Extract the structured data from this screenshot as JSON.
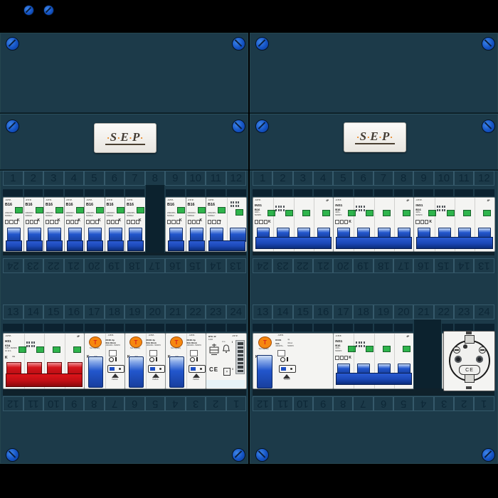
{
  "logo": {
    "letters": [
      "S",
      "E",
      "P"
    ],
    "dot": "·"
  },
  "numbers": {
    "top": [
      "1",
      "2",
      "3",
      "4",
      "5",
      "6",
      "7",
      "8",
      "9",
      "10",
      "11",
      "12"
    ],
    "mid_flipped": [
      "24",
      "23",
      "22",
      "21",
      "20",
      "19",
      "18",
      "17",
      "16",
      "15",
      "14",
      "13"
    ],
    "mid": [
      "13",
      "14",
      "15",
      "16",
      "17",
      "18",
      "19",
      "20",
      "21",
      "22",
      "23",
      "24"
    ],
    "bottom_flipped": [
      "12",
      "11",
      "10",
      "9",
      "8",
      "7",
      "6",
      "5",
      "4",
      "3",
      "2",
      "1"
    ]
  },
  "device_text": {
    "mcb1": {
      "brand": "-S·E·P-",
      "rating": "B16",
      "volt": "230/240V~",
      "freq": "50/60Hz",
      "kmark": "K"
    },
    "mcb2": {
      "brand": "-S·E·P-",
      "rating": "B16",
      "volt": "230/240V~",
      "freq": "50/60Hz",
      "ce": "CE"
    },
    "ins1": {
      "brand": "-S·E·P-",
      "model": "INS1",
      "rating": "B16",
      "volt": "400V~",
      "freq": "50/60Hz",
      "poles": "4P",
      "kmark": "K"
    },
    "hs1": {
      "brand": "-S·E·P-",
      "model": "HS1",
      "rating": "63A",
      "volt": "415V~",
      "freq": "50/60Hz",
      "duty": "AC 22 A",
      "poles": "4P",
      "kmark": "K",
      "ce": "CE"
    },
    "rcd2": {
      "brand": "-S·E·P-",
      "model": "RCD1",
      "poles": "2p",
      "rating": "63A",
      "trip": "30mA",
      "volt": "230/240V~",
      "freq": "50/60Hz",
      "button": "T",
      "test_note": "Test regularly",
      "kmark": "K",
      "ce": "CE",
      "padlock": "Padlock"
    },
    "rcd4": {
      "brand": "-S·E·P-",
      "model": "RCD1",
      "poles": "4p",
      "rating": "63A",
      "trip": "30mA",
      "volt": "400/415V~",
      "freq": "50/60Hz",
      "button": "T",
      "test_note": "Test regularly",
      "kmark": "K",
      "ce": "CE",
      "padlock": "Padlock"
    },
    "bell": {
      "model": "BTG 42",
      "va": "12VA",
      "brand": "-S·E·P-",
      "ip": "IP30",
      "on": "I",
      "off": "0",
      "ce": "CE"
    },
    "socket": {
      "ce": "CE"
    }
  },
  "rows": {
    "left_top": [
      {
        "type": "mcb1"
      },
      {
        "type": "mcb1"
      },
      {
        "type": "mcb1"
      },
      {
        "type": "mcb1"
      },
      {
        "type": "mcb1"
      },
      {
        "type": "mcb1"
      },
      {
        "type": "mcb1"
      },
      {
        "type": "gap"
      },
      {
        "type": "mcb1"
      },
      {
        "type": "mcb1"
      },
      {
        "type": "mcb2",
        "span": 2
      }
    ],
    "left_bottom": [
      {
        "type": "hs1",
        "span": 4
      },
      {
        "type": "rcd2",
        "span": 2
      },
      {
        "type": "rcd2",
        "span": 2
      },
      {
        "type": "rcd2",
        "span": 2
      },
      {
        "type": "bell",
        "span": 2
      }
    ],
    "right_top": [
      {
        "type": "ins1",
        "span": 4
      },
      {
        "type": "ins1",
        "span": 4
      },
      {
        "type": "ins1",
        "span": 4
      }
    ],
    "right_bottom": [
      {
        "type": "rcd4",
        "span": 4
      },
      {
        "type": "ins1",
        "span": 4
      },
      {
        "type": "gap",
        "span": 1.4
      },
      {
        "type": "socket",
        "span": 2.6
      }
    ]
  },
  "panels": [
    {
      "id": "left",
      "rows": {
        "top": "left_top",
        "bottom": "left_bottom"
      }
    },
    {
      "id": "right",
      "rows": {
        "top": "right_top",
        "bottom": "right_bottom"
      }
    }
  ],
  "colors": {
    "panel": "#1c3a49",
    "screw_blue": "#1453c4",
    "toggle_blue": "#2256cc",
    "main_switch_red": "#d5161c",
    "indicator_green": "#2fb44c",
    "test_orange": "#f6870f"
  }
}
